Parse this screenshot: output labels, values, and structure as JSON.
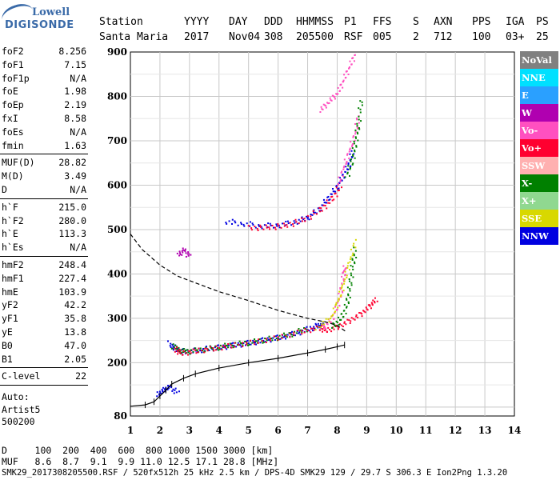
{
  "logo": {
    "line1": "Lowell",
    "line2": "DIGISONDE"
  },
  "header": {
    "row1": [
      "Station",
      "YYYY",
      "DAY",
      "DDD",
      "HHMMSS",
      "P1",
      "FFS",
      "S",
      "AXN",
      "PPS",
      "IGA",
      "PS"
    ],
    "row2": [
      "Santa Maria",
      "2017",
      "Nov04",
      "308",
      "205500",
      "RSF",
      "005",
      "2",
      "712",
      "100",
      "03+",
      "25"
    ]
  },
  "params": {
    "group1": [
      {
        "name": "foF2",
        "value": "8.256"
      },
      {
        "name": "foF1",
        "value": "7.15"
      },
      {
        "name": "foF1p",
        "value": "N/A"
      },
      {
        "name": "foE",
        "value": "1.98"
      },
      {
        "name": "foEp",
        "value": "2.19"
      },
      {
        "name": "fxI",
        "value": "8.58"
      },
      {
        "name": "foEs",
        "value": "N/A"
      },
      {
        "name": "fmin",
        "value": "1.63"
      }
    ],
    "group2": [
      {
        "name": "MUF(D)",
        "value": "28.82"
      },
      {
        "name": "M(D)",
        "value": "3.49"
      },
      {
        "name": "D",
        "value": "N/A"
      }
    ],
    "group3": [
      {
        "name": "h`F",
        "value": "215.0"
      },
      {
        "name": "h`F2",
        "value": "280.0"
      },
      {
        "name": "h`E",
        "value": "113.3"
      },
      {
        "name": "h`Es",
        "value": "N/A"
      }
    ],
    "group4": [
      {
        "name": "hmF2",
        "value": "248.4"
      },
      {
        "name": "hmF1",
        "value": "227.4"
      },
      {
        "name": "hmE",
        "value": "103.9"
      },
      {
        "name": "yF2",
        "value": "42.2"
      },
      {
        "name": "yF1",
        "value": "35.8"
      },
      {
        "name": "yE",
        "value": "13.8"
      },
      {
        "name": "B0",
        "value": "47.0"
      },
      {
        "name": "B1",
        "value": "2.05"
      }
    ],
    "group5": [
      {
        "name": "C-level",
        "value": "22"
      }
    ],
    "extra": [
      "Auto:",
      "Artist5",
      "500200"
    ]
  },
  "legend": [
    {
      "label": "NoVal",
      "color": "#808080"
    },
    {
      "label": "NNE",
      "color": "#00e0ff"
    },
    {
      "label": "E",
      "color": "#2aa0ff"
    },
    {
      "label": "W",
      "color": "#b000b0"
    },
    {
      "label": "Vo-",
      "color": "#ff50c0"
    },
    {
      "label": "Vo+",
      "color": "#ff0030"
    },
    {
      "label": "SSW",
      "color": "#ffb0b0"
    },
    {
      "label": "X-",
      "color": "#008000"
    },
    {
      "label": "X+",
      "color": "#90d890"
    },
    {
      "label": "SSE",
      "color": "#d8d800"
    },
    {
      "label": "NNW",
      "color": "#0000e0"
    }
  ],
  "bottom": {
    "line1": "D     100  200  400  600  800 1000 1500 3000 [km]",
    "line2": "MUF   8.6  8.7  9.1  9.9 11.0 12.5 17.1 28.8 [MHz]",
    "line3": "SMK29_2017308205500.RSF / 520fx512h 25 kHz 2.5 km / DPS-4D SMK29 129 / 29.7 S 306.3 E Ion2Png 1.3.20"
  },
  "chart_data": {
    "type": "scatter",
    "title": "",
    "xlabel": "",
    "ylabel": "",
    "xlim": [
      1,
      14
    ],
    "ylim": [
      80,
      900
    ],
    "xticks": [
      1,
      2,
      3,
      4,
      5,
      6,
      7,
      8,
      9,
      10,
      11,
      12,
      13,
      14
    ],
    "yticks": [
      100,
      200,
      300,
      400,
      500,
      600,
      700,
      800,
      900
    ],
    "ytick_labels_shown": [
      80,
      200,
      300,
      400,
      500,
      600,
      700,
      800,
      900
    ],
    "grid": true,
    "series": [
      {
        "color": "#0000e0",
        "points": [
          [
            2.3,
            245
          ],
          [
            2.5,
            232
          ],
          [
            2.8,
            226
          ],
          [
            3.2,
            229
          ],
          [
            3.6,
            233
          ],
          [
            4.0,
            236
          ],
          [
            4.5,
            241
          ],
          [
            5.0,
            246
          ],
          [
            5.5,
            252
          ],
          [
            6.0,
            258
          ],
          [
            6.5,
            266
          ],
          [
            7.0,
            277
          ],
          [
            7.3,
            284
          ],
          [
            7.5,
            290
          ]
        ]
      },
      {
        "color": "#008000",
        "points": [
          [
            2.4,
            240
          ],
          [
            2.7,
            228
          ],
          [
            3.0,
            227
          ],
          [
            3.5,
            232
          ],
          [
            4.0,
            237
          ],
          [
            4.5,
            243
          ],
          [
            5.0,
            247
          ],
          [
            5.5,
            253
          ],
          [
            6.0,
            259
          ],
          [
            6.5,
            268
          ],
          [
            7.0,
            280
          ]
        ]
      },
      {
        "color": "#ff0030",
        "points": [
          [
            2.5,
            232
          ],
          [
            2.7,
            222
          ],
          [
            3.2,
            228
          ],
          [
            3.8,
            233
          ],
          [
            4.4,
            240
          ],
          [
            5.2,
            248
          ],
          [
            6.0,
            258
          ],
          [
            6.8,
            272
          ],
          [
            7.4,
            280
          ],
          [
            7.6,
            274
          ],
          [
            8.0,
            282
          ],
          [
            8.4,
            296
          ],
          [
            8.8,
            312
          ],
          [
            9.1,
            330
          ],
          [
            9.3,
            345
          ]
        ]
      },
      {
        "color": "#ff50c0",
        "points": [
          [
            7.5,
            280
          ],
          [
            7.8,
            300
          ],
          [
            8.0,
            330
          ],
          [
            8.1,
            360
          ],
          [
            8.2,
            400
          ],
          [
            8.25,
            420
          ]
        ]
      },
      {
        "color": "#008000",
        "points": [
          [
            7.8,
            282
          ],
          [
            8.1,
            300
          ],
          [
            8.3,
            330
          ],
          [
            8.4,
            370
          ],
          [
            8.5,
            420
          ],
          [
            8.6,
            460
          ]
        ]
      },
      {
        "color": "#d8d800",
        "points": [
          [
            7.3,
            280
          ],
          [
            7.8,
            305
          ],
          [
            8.0,
            340
          ],
          [
            8.2,
            380
          ],
          [
            8.4,
            430
          ],
          [
            8.6,
            480
          ]
        ]
      },
      {
        "color": "#0000e0",
        "points": [
          [
            4.2,
            520
          ],
          [
            4.8,
            515
          ],
          [
            5.4,
            510
          ],
          [
            6.0,
            512
          ],
          [
            6.6,
            520
          ],
          [
            7.0,
            530
          ],
          [
            7.4,
            550
          ],
          [
            7.7,
            575
          ],
          [
            8.0,
            600
          ],
          [
            8.2,
            625
          ],
          [
            8.4,
            650
          ],
          [
            8.5,
            680
          ]
        ]
      },
      {
        "color": "#ff0030",
        "points": [
          [
            5.0,
            505
          ],
          [
            5.6,
            506
          ],
          [
            6.2,
            510
          ],
          [
            6.8,
            522
          ],
          [
            7.4,
            545
          ],
          [
            7.8,
            570
          ],
          [
            8.1,
            600
          ]
        ]
      },
      {
        "color": "#ff50c0",
        "points": [
          [
            7.4,
            770
          ],
          [
            7.7,
            790
          ],
          [
            8.0,
            810
          ],
          [
            8.2,
            840
          ],
          [
            8.4,
            870
          ],
          [
            8.6,
            900
          ]
        ]
      },
      {
        "color": "#ff50c0",
        "points": [
          [
            8.0,
            600
          ],
          [
            8.2,
            640
          ],
          [
            8.4,
            680
          ],
          [
            8.6,
            720
          ],
          [
            8.7,
            760
          ]
        ]
      },
      {
        "color": "#008000",
        "points": [
          [
            8.3,
            620
          ],
          [
            8.5,
            660
          ],
          [
            8.6,
            700
          ],
          [
            8.7,
            740
          ],
          [
            8.8,
            800
          ]
        ]
      },
      {
        "color": "#b000b0",
        "points": [
          [
            2.6,
            445
          ],
          [
            2.8,
            455
          ],
          [
            3.0,
            440
          ]
        ]
      },
      {
        "color": "#0000e0",
        "points": [
          [
            1.9,
            130
          ],
          [
            2.1,
            140
          ],
          [
            2.3,
            148
          ],
          [
            2.6,
            132
          ]
        ]
      }
    ],
    "profile": {
      "style": "solid",
      "color": "#000000",
      "points": [
        [
          1.0,
          102
        ],
        [
          1.5,
          105
        ],
        [
          1.8,
          112
        ],
        [
          2.0,
          125
        ],
        [
          2.2,
          138
        ],
        [
          2.4,
          152
        ],
        [
          2.8,
          165
        ],
        [
          3.2,
          175
        ],
        [
          4.0,
          188
        ],
        [
          5.0,
          200
        ],
        [
          6.0,
          210
        ],
        [
          7.0,
          222
        ],
        [
          7.6,
          230
        ],
        [
          8.0,
          236
        ],
        [
          8.25,
          240
        ]
      ]
    },
    "trace": {
      "style": "dashed",
      "color": "#000000",
      "points": [
        [
          1.0,
          490
        ],
        [
          1.4,
          455
        ],
        [
          2.0,
          420
        ],
        [
          2.6,
          395
        ],
        [
          3.0,
          385
        ],
        [
          4.0,
          360
        ],
        [
          5.0,
          340
        ],
        [
          6.0,
          318
        ],
        [
          7.0,
          300
        ],
        [
          7.6,
          292
        ],
        [
          8.0,
          284
        ],
        [
          8.3,
          270
        ]
      ]
    }
  }
}
